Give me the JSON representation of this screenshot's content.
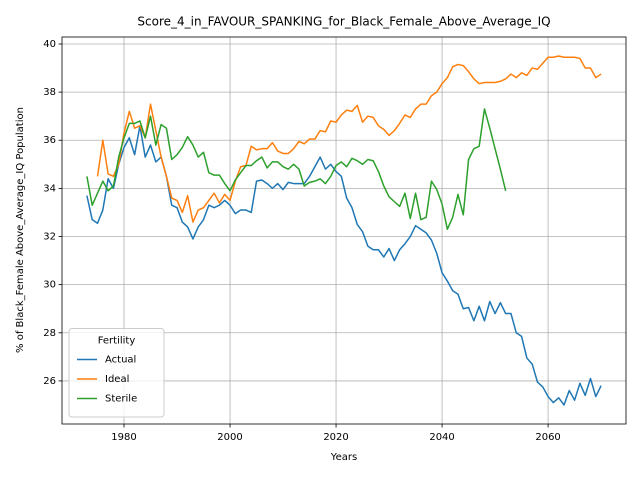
{
  "chart_data": {
    "type": "line",
    "title": "Score_4_in_FAVOUR_SPANKING_for_Black_Female_Above_Average_IQ",
    "x_label": "Years",
    "y_label": "% of Black_Female Above_Average_IQ Population",
    "legend_title": "Fertility",
    "legend": "lower left",
    "grid": true,
    "xlim": [
      1968.3,
      2074.7
    ],
    "xticks": [
      1980,
      2000,
      2020,
      2040,
      2060
    ],
    "ylim": [
      24.21,
      40.29
    ],
    "yticks": [
      26,
      28,
      30,
      32,
      34,
      36,
      38,
      40
    ],
    "x": [
      1973,
      1974,
      1975,
      1976,
      1977,
      1978,
      1979,
      1980,
      1981,
      1982,
      1983,
      1984,
      1985,
      1986,
      1987,
      1988,
      1989,
      1990,
      1991,
      1992,
      1993,
      1994,
      1995,
      1996,
      1997,
      1998,
      1999,
      2000,
      2001,
      2002,
      2003,
      2004,
      2005,
      2006,
      2007,
      2008,
      2009,
      2010,
      2011,
      2012,
      2013,
      2014,
      2015,
      2016,
      2017,
      2018,
      2019,
      2020,
      2021,
      2022,
      2023,
      2024,
      2025,
      2026,
      2027,
      2028,
      2029,
      2030,
      2031,
      2032,
      2033,
      2034,
      2035,
      2036,
      2037,
      2038,
      2039,
      2040,
      2041,
      2042,
      2043,
      2044,
      2045,
      2046,
      2047,
      2048,
      2049,
      2050,
      2051,
      2052,
      2053,
      2054,
      2055,
      2056,
      2057,
      2058,
      2059,
      2060,
      2061,
      2062,
      2063,
      2064,
      2065,
      2066,
      2067,
      2068,
      2069,
      2070
    ],
    "series": [
      {
        "name": "Actual",
        "color": "#1f77b4",
        "values": [
          33.7,
          32.7,
          32.55,
          33.1,
          34.4,
          34.0,
          35.0,
          35.7,
          36.1,
          35.4,
          36.6,
          35.3,
          35.8,
          35.1,
          35.3,
          34.5,
          33.3,
          33.2,
          32.6,
          32.4,
          31.9,
          32.4,
          32.7,
          33.3,
          33.2,
          33.3,
          33.5,
          33.3,
          32.95,
          33.1,
          33.1,
          33.0,
          34.3,
          34.35,
          34.2,
          34.0,
          34.2,
          33.95,
          34.25,
          34.2,
          34.2,
          34.2,
          34.5,
          34.9,
          35.3,
          34.8,
          35.0,
          34.7,
          34.5,
          33.6,
          33.2,
          32.5,
          32.2,
          31.6,
          31.45,
          31.45,
          31.15,
          31.5,
          31.0,
          31.45,
          31.7,
          32.0,
          32.45,
          32.3,
          32.15,
          31.85,
          31.3,
          30.5,
          30.15,
          29.75,
          29.6,
          29.0,
          29.05,
          28.5,
          29.1,
          28.5,
          29.3,
          28.8,
          29.25,
          28.8,
          28.8,
          28.0,
          27.85,
          26.95,
          26.7,
          25.95,
          25.75,
          25.35,
          25.1,
          25.3,
          25.0,
          25.6,
          25.2,
          25.9,
          25.4,
          26.1,
          25.35,
          25.8
        ]
      },
      {
        "name": "Ideal",
        "color": "#ff7f0e",
        "values": [
          null,
          null,
          34.5,
          36.0,
          34.6,
          34.5,
          35.0,
          36.3,
          37.2,
          36.5,
          36.6,
          36.1,
          37.5,
          36.4,
          35.3,
          34.5,
          33.6,
          33.5,
          33.0,
          33.7,
          32.6,
          33.1,
          33.2,
          33.5,
          33.8,
          33.4,
          33.75,
          33.5,
          34.3,
          34.9,
          34.95,
          35.75,
          35.6,
          35.65,
          35.65,
          35.9,
          35.55,
          35.45,
          35.45,
          35.65,
          35.95,
          35.85,
          36.05,
          36.05,
          36.4,
          36.35,
          36.8,
          36.75,
          37.05,
          37.25,
          37.2,
          37.45,
          36.75,
          37.0,
          36.95,
          36.6,
          36.45,
          36.2,
          36.4,
          36.7,
          37.05,
          36.95,
          37.3,
          37.5,
          37.5,
          37.85,
          38.0,
          38.35,
          38.6,
          39.05,
          39.15,
          39.1,
          38.85,
          38.55,
          38.35,
          38.4,
          38.4,
          38.4,
          38.45,
          38.55,
          38.75,
          38.6,
          38.8,
          38.7,
          39.0,
          38.95,
          39.2,
          39.45,
          39.45,
          39.5,
          39.45,
          39.45,
          39.45,
          39.4,
          39.0,
          39.0,
          38.6,
          38.75
        ]
      },
      {
        "name": "Sterile",
        "color": "#2ca02c",
        "values": [
          34.5,
          33.3,
          33.8,
          34.3,
          33.9,
          34.1,
          35.3,
          36.1,
          36.7,
          36.7,
          36.8,
          36.1,
          37.0,
          35.8,
          36.65,
          36.5,
          35.2,
          35.4,
          35.7,
          36.15,
          35.8,
          35.3,
          35.5,
          34.65,
          34.55,
          34.55,
          34.2,
          33.9,
          34.35,
          34.65,
          34.95,
          34.95,
          35.15,
          35.3,
          34.85,
          35.1,
          35.1,
          34.9,
          34.8,
          35.0,
          34.8,
          34.1,
          34.25,
          34.3,
          34.4,
          34.2,
          34.5,
          34.95,
          35.1,
          34.9,
          35.25,
          35.15,
          35.0,
          35.2,
          35.15,
          34.7,
          34.1,
          33.65,
          33.45,
          33.25,
          33.8,
          32.75,
          33.8,
          32.7,
          32.8,
          34.3,
          33.95,
          33.35,
          32.3,
          32.8,
          33.75,
          32.9,
          35.2,
          35.65,
          35.75,
          37.3,
          36.5,
          35.65,
          34.8,
          33.9,
          null,
          null,
          null,
          null,
          null,
          null,
          null,
          null,
          null,
          null,
          null,
          null,
          null,
          null,
          null,
          null,
          null,
          null
        ]
      }
    ]
  }
}
